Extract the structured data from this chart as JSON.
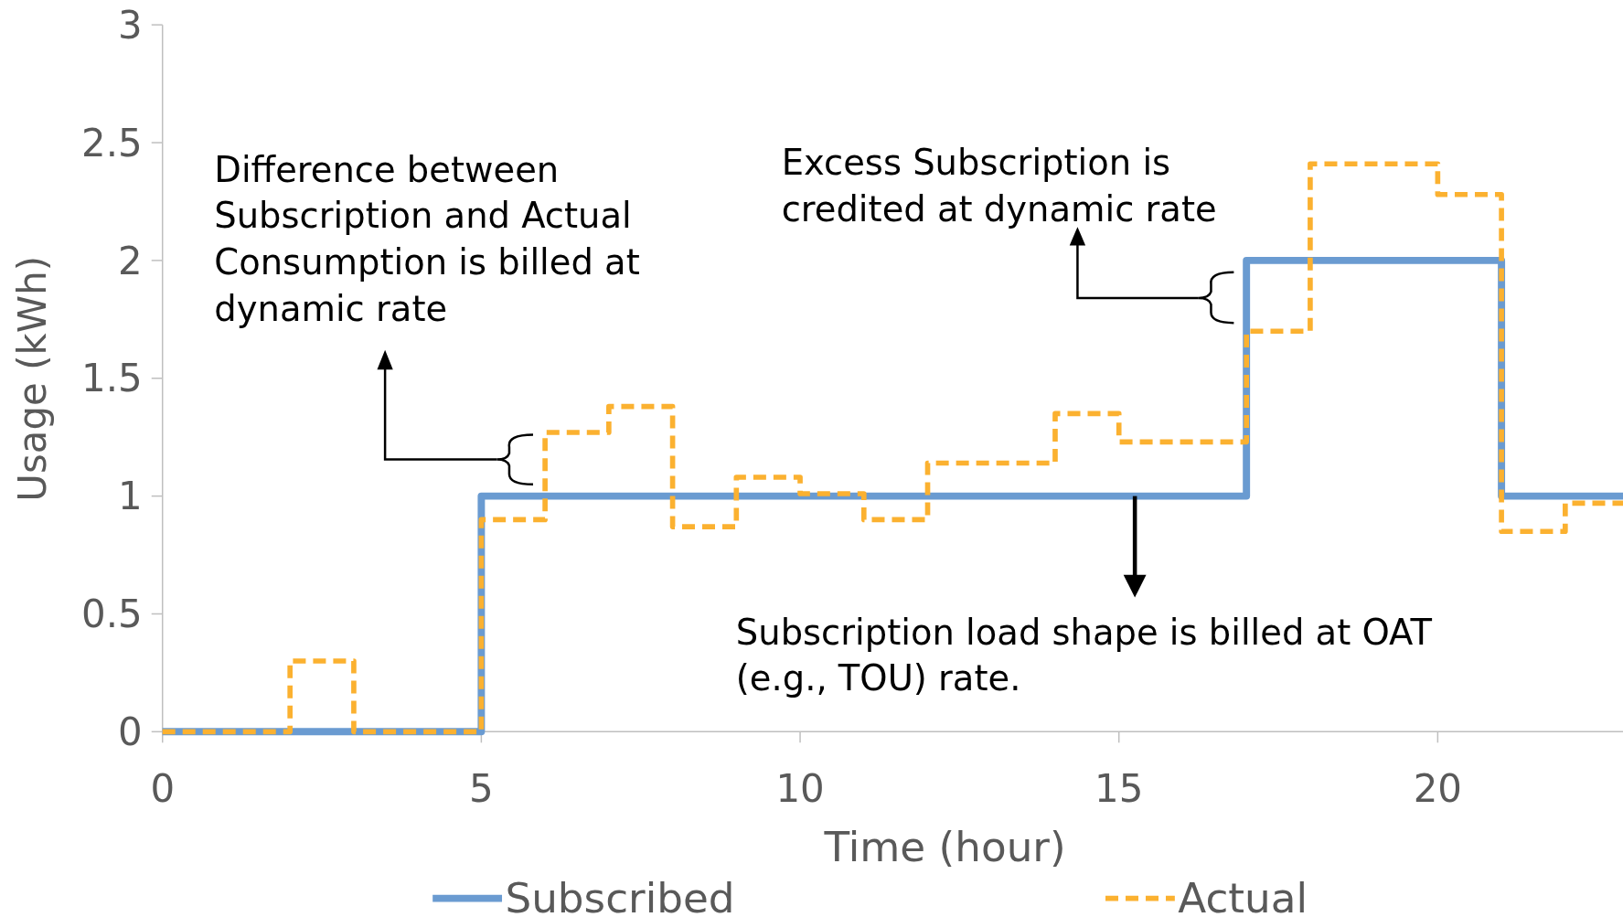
{
  "chart_data": {
    "type": "step",
    "xlabel": "Time (hour)",
    "ylabel": "Usage (kWh)",
    "xlim": [
      0,
      23
    ],
    "xticks": [
      0,
      5,
      10,
      15,
      20
    ],
    "ylim": [
      0,
      3
    ],
    "yticks": [
      0,
      0.5,
      1,
      1.5,
      2,
      2.5,
      3
    ],
    "grid": false,
    "legend": "bottom",
    "series": [
      {
        "name": "Subscribed",
        "color": "#6a9bd1",
        "line_style": "solid",
        "x": [
          0,
          5,
          17,
          21,
          23
        ],
        "values": [
          0,
          1,
          2,
          1,
          1
        ]
      },
      {
        "name": "Actual",
        "color": "#fbb130",
        "line_style": "dashed",
        "x": [
          0,
          2,
          3,
          5,
          6,
          7,
          8,
          9,
          10,
          11,
          12,
          14,
          15,
          17,
          18,
          20,
          21,
          22,
          23
        ],
        "values": [
          0,
          0.3,
          0,
          0.9,
          1.27,
          1.38,
          0.87,
          1.08,
          1.01,
          0.9,
          1.14,
          1.35,
          1.23,
          1.7,
          2.41,
          2.28,
          0.85,
          0.97,
          0.97
        ]
      }
    ],
    "annotations": [
      "Difference between\nSubscription and Actual\nConsumption is billed at\ndynamic rate",
      "Excess Subscription is\ncredited at dynamic rate",
      {
        "text": "Subscription load shape is billed at OAT\n(e.g., TOU) rate.",
        "x": 15.25,
        "y": 1
      }
    ]
  }
}
